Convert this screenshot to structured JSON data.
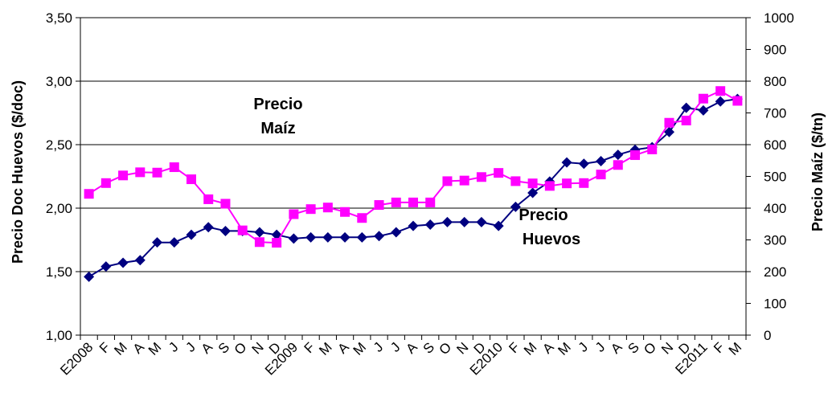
{
  "chart_data": {
    "type": "line",
    "x": [
      "E2008",
      "F",
      "M",
      "A",
      "M",
      "J",
      "J",
      "A",
      "S",
      "O",
      "N",
      "D",
      "E2009",
      "F",
      "M",
      "A",
      "M",
      "J",
      "J",
      "A",
      "S",
      "O",
      "N",
      "D",
      "E2010",
      "F",
      "M",
      "A",
      "M",
      "J",
      "J",
      "A",
      "S",
      "O",
      "N",
      "D",
      "E2011",
      "F",
      "M"
    ],
    "grid": "horizontal",
    "left_axis": {
      "label": "Precio Doc Huevos ($/doc)",
      "ylim": [
        1.0,
        3.5
      ],
      "ticks": [
        "1,00",
        "1,50",
        "2,00",
        "2,50",
        "3,00",
        "3,50"
      ],
      "tick_values": [
        1.0,
        1.5,
        2.0,
        2.5,
        3.0,
        3.5
      ]
    },
    "right_axis": {
      "label": "Precio Maíz ($/tn)",
      "ylim": [
        0,
        1000
      ],
      "ticks": [
        "0",
        "100",
        "200",
        "300",
        "400",
        "500",
        "600",
        "700",
        "800",
        "900",
        "1000"
      ],
      "tick_values": [
        0,
        100,
        200,
        300,
        400,
        500,
        600,
        700,
        800,
        900,
        1000
      ]
    },
    "series": [
      {
        "axis": "left",
        "color": "#000080",
        "marker": "diamond",
        "values": [
          1.46,
          1.54,
          1.57,
          1.59,
          1.73,
          1.73,
          1.79,
          1.85,
          1.82,
          1.82,
          1.81,
          1.79,
          1.76,
          1.77,
          1.77,
          1.77,
          1.77,
          1.78,
          1.81,
          1.86,
          1.87,
          1.89,
          1.89,
          1.89,
          1.86,
          2.01,
          2.12,
          2.21,
          2.36,
          2.35,
          2.37,
          2.42,
          2.46,
          2.48,
          2.6,
          2.79,
          2.77,
          2.84,
          2.86
        ]
      },
      {
        "axis": "right",
        "color": "#FF00FF",
        "marker": "square",
        "values": [
          445,
          479,
          503,
          513,
          512,
          529,
          491,
          428,
          414,
          330,
          293,
          291,
          381,
          397,
          402,
          388,
          369,
          410,
          418,
          418,
          418,
          485,
          487,
          498,
          511,
          485,
          478,
          470,
          478,
          479,
          506,
          536,
          567,
          585,
          669,
          676,
          745,
          769,
          738
        ]
      }
    ],
    "annotations": [
      {
        "lines": [
          "Precio",
          "Maíz"
        ]
      },
      {
        "lines": [
          "Precio",
          "Huevos"
        ]
      }
    ]
  }
}
